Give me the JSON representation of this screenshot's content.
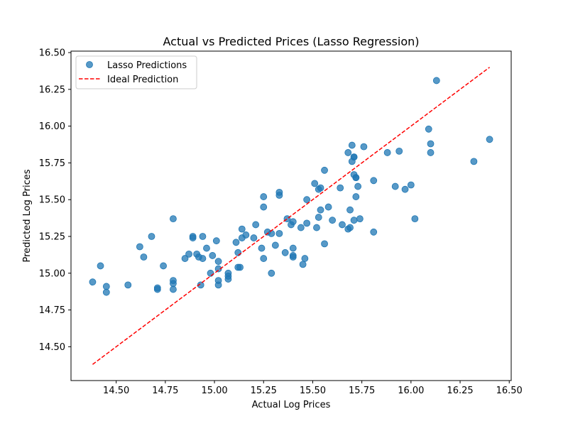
{
  "chart_data": {
    "type": "scatter",
    "title": "Actual vs Predicted Prices (Lasso Regression)",
    "xlabel": "Actual Log Prices",
    "ylabel": "Predicted Log Prices",
    "xlim": [
      14.27,
      16.51
    ],
    "ylim": [
      14.27,
      16.51
    ],
    "xticks": [
      "14.50",
      "14.75",
      "15.00",
      "15.25",
      "15.50",
      "15.75",
      "16.00",
      "16.25",
      "16.50"
    ],
    "yticks": [
      "14.50",
      "14.75",
      "15.00",
      "15.25",
      "15.50",
      "15.75",
      "16.00",
      "16.25",
      "16.50"
    ],
    "grid": false,
    "legend_position": "top-left",
    "colors": {
      "scatter": "#1f77b4",
      "ideal": "#ff0000"
    },
    "series": [
      {
        "name": "Lasso Predictions",
        "kind": "scatter",
        "points": [
          [
            14.38,
            14.94
          ],
          [
            14.42,
            15.05
          ],
          [
            14.45,
            14.91
          ],
          [
            14.45,
            14.87
          ],
          [
            14.56,
            14.92
          ],
          [
            14.62,
            15.18
          ],
          [
            14.64,
            15.11
          ],
          [
            14.68,
            15.25
          ],
          [
            14.71,
            14.89
          ],
          [
            14.71,
            14.9
          ],
          [
            14.74,
            15.05
          ],
          [
            14.79,
            15.37
          ],
          [
            14.79,
            14.95
          ],
          [
            14.79,
            14.93
          ],
          [
            14.79,
            14.89
          ],
          [
            14.85,
            15.1
          ],
          [
            14.87,
            15.13
          ],
          [
            14.89,
            15.24
          ],
          [
            14.89,
            15.25
          ],
          [
            14.91,
            15.13
          ],
          [
            14.92,
            15.11
          ],
          [
            14.93,
            14.92
          ],
          [
            14.94,
            15.25
          ],
          [
            14.94,
            15.1
          ],
          [
            14.96,
            15.17
          ],
          [
            14.98,
            15.0
          ],
          [
            14.99,
            15.12
          ],
          [
            15.01,
            15.22
          ],
          [
            15.02,
            15.08
          ],
          [
            15.02,
            15.03
          ],
          [
            15.02,
            14.95
          ],
          [
            15.02,
            14.92
          ],
          [
            15.07,
            15.0
          ],
          [
            15.07,
            14.98
          ],
          [
            15.07,
            14.96
          ],
          [
            15.11,
            15.21
          ],
          [
            15.12,
            15.04
          ],
          [
            15.12,
            15.14
          ],
          [
            15.13,
            15.04
          ],
          [
            15.14,
            15.24
          ],
          [
            15.14,
            15.3
          ],
          [
            15.16,
            15.26
          ],
          [
            15.2,
            15.24
          ],
          [
            15.21,
            15.33
          ],
          [
            15.24,
            15.17
          ],
          [
            15.25,
            15.1
          ],
          [
            15.25,
            15.45
          ],
          [
            15.25,
            15.52
          ],
          [
            15.27,
            15.28
          ],
          [
            15.29,
            15.0
          ],
          [
            15.29,
            15.27
          ],
          [
            15.31,
            15.19
          ],
          [
            15.33,
            15.55
          ],
          [
            15.33,
            15.53
          ],
          [
            15.33,
            15.27
          ],
          [
            15.36,
            15.14
          ],
          [
            15.37,
            15.37
          ],
          [
            15.39,
            15.33
          ],
          [
            15.4,
            15.35
          ],
          [
            15.4,
            15.12
          ],
          [
            15.4,
            15.11
          ],
          [
            15.4,
            15.17
          ],
          [
            15.44,
            15.31
          ],
          [
            15.45,
            15.06
          ],
          [
            15.46,
            15.1
          ],
          [
            15.47,
            15.34
          ],
          [
            15.47,
            15.5
          ],
          [
            15.51,
            15.61
          ],
          [
            15.52,
            15.31
          ],
          [
            15.53,
            15.38
          ],
          [
            15.53,
            15.57
          ],
          [
            15.54,
            15.43
          ],
          [
            15.54,
            15.58
          ],
          [
            15.56,
            15.7
          ],
          [
            15.56,
            15.2
          ],
          [
            15.58,
            15.45
          ],
          [
            15.6,
            15.36
          ],
          [
            15.64,
            15.58
          ],
          [
            15.65,
            15.33
          ],
          [
            15.68,
            15.82
          ],
          [
            15.68,
            15.3
          ],
          [
            15.69,
            15.43
          ],
          [
            15.69,
            15.31
          ],
          [
            15.7,
            15.76
          ],
          [
            15.7,
            15.87
          ],
          [
            15.71,
            15.79
          ],
          [
            15.71,
            15.79
          ],
          [
            15.71,
            15.67
          ],
          [
            15.71,
            15.36
          ],
          [
            15.72,
            15.65
          ],
          [
            15.72,
            15.65
          ],
          [
            15.72,
            15.52
          ],
          [
            15.73,
            15.59
          ],
          [
            15.74,
            15.37
          ],
          [
            15.76,
            15.86
          ],
          [
            15.81,
            15.63
          ],
          [
            15.81,
            15.28
          ],
          [
            15.88,
            15.82
          ],
          [
            15.92,
            15.59
          ],
          [
            15.94,
            15.83
          ],
          [
            15.97,
            15.57
          ],
          [
            16.0,
            15.6
          ],
          [
            16.02,
            15.37
          ],
          [
            16.09,
            15.98
          ],
          [
            16.1,
            15.88
          ],
          [
            16.1,
            15.82
          ],
          [
            16.13,
            16.31
          ],
          [
            16.32,
            15.76
          ],
          [
            16.4,
            15.91
          ]
        ]
      },
      {
        "name": "Ideal Prediction",
        "kind": "line",
        "style": "dashed",
        "points": [
          [
            14.38,
            14.38
          ],
          [
            16.4,
            16.4
          ]
        ]
      }
    ]
  }
}
